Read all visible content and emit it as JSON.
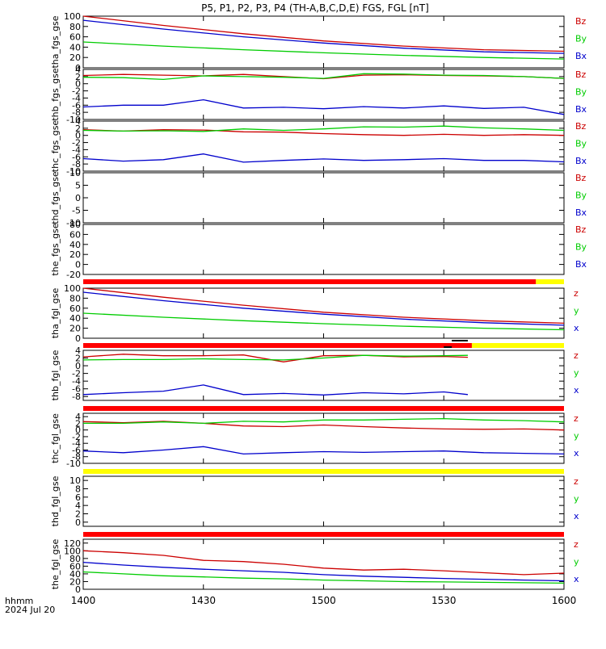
{
  "title": "P5, P1, P2, P3, P4 (TH-A,B,C,D,E) FGS, FGL [nT]",
  "footer": {
    "line1": "hhmm",
    "line2": "2024 Jul 20"
  },
  "colors": {
    "x": "#0000cc",
    "y": "#00cc00",
    "z": "#cc0000",
    "bar_red": "#ff0000",
    "bar_yellow": "#ffff00",
    "bar_black": "#000000"
  },
  "chart_data": [
    {
      "type": "line",
      "panel": "tha_fgs_gse",
      "ylabel": "tha_fgs_gse",
      "ylim": [
        0,
        100
      ],
      "yticks": [
        "100",
        "80",
        "60",
        "40",
        "20",
        "0"
      ],
      "legend": [
        "Bz",
        "By",
        "Bx"
      ],
      "series": [
        {
          "name": "Bz",
          "color_key": "z",
          "x": [
            0,
            20,
            40,
            60,
            80,
            100,
            120
          ],
          "values": [
            100,
            82,
            66,
            52,
            42,
            35,
            32
          ]
        },
        {
          "name": "By",
          "color_key": "y",
          "x": [
            0,
            20,
            40,
            60,
            80,
            100,
            120
          ],
          "values": [
            50,
            42,
            35,
            29,
            24,
            20,
            17
          ]
        },
        {
          "name": "Bx",
          "color_key": "x",
          "x": [
            0,
            20,
            40,
            60,
            80,
            100,
            120
          ],
          "values": [
            92,
            75,
            60,
            48,
            38,
            31,
            28
          ]
        }
      ]
    },
    {
      "type": "line",
      "panel": "thb_fgs_gse",
      "ylabel": "thb_fgs_gse",
      "ylim": [
        -10,
        4
      ],
      "yticks": [
        "4",
        "2",
        "0",
        "-2",
        "-4",
        "-6",
        "-8",
        "-10"
      ],
      "legend": [
        "Bz",
        "By",
        "Bx"
      ],
      "series": [
        {
          "name": "Bz",
          "color_key": "z",
          "x": [
            0,
            10,
            20,
            30,
            40,
            50,
            60,
            70,
            80,
            90,
            100,
            110,
            120
          ],
          "values": [
            2.3,
            2.6,
            2.4,
            2.2,
            2.6,
            2.0,
            1.4,
            2.4,
            2.5,
            2.3,
            2.2,
            2.0,
            1.5
          ]
        },
        {
          "name": "By",
          "color_key": "y",
          "x": [
            0,
            10,
            20,
            30,
            40,
            50,
            60,
            70,
            80,
            90,
            100,
            110,
            120
          ],
          "values": [
            1.8,
            1.7,
            1.2,
            2.2,
            2.0,
            1.8,
            1.5,
            2.8,
            2.7,
            2.4,
            2.3,
            2.0,
            1.5
          ]
        },
        {
          "name": "Bx",
          "color_key": "x",
          "x": [
            0,
            10,
            20,
            30,
            40,
            50,
            60,
            70,
            80,
            90,
            100,
            110,
            120
          ],
          "values": [
            -6.5,
            -6.0,
            -6.0,
            -4.5,
            -6.8,
            -6.6,
            -7.0,
            -6.4,
            -6.8,
            -6.2,
            -6.9,
            -6.6,
            -8.6
          ]
        }
      ]
    },
    {
      "type": "line",
      "panel": "thc_fgs_gse",
      "ylabel": "thc_fgs_gse",
      "ylim": [
        -10,
        4
      ],
      "yticks": [
        "4",
        "2",
        "0",
        "-2",
        "-4",
        "-6",
        "-8",
        "-10"
      ],
      "legend": [
        "Bz",
        "By",
        "Bx"
      ],
      "series": [
        {
          "name": "Bz",
          "color_key": "z",
          "x": [
            0,
            10,
            20,
            30,
            40,
            50,
            60,
            70,
            80,
            90,
            100,
            110,
            120
          ],
          "values": [
            1.6,
            1.2,
            1.6,
            1.5,
            1.0,
            0.9,
            0.5,
            0.2,
            0.0,
            0.3,
            0.0,
            0.2,
            0.0
          ]
        },
        {
          "name": "By",
          "color_key": "y",
          "x": [
            0,
            10,
            20,
            30,
            40,
            50,
            60,
            70,
            80,
            90,
            100,
            110,
            120
          ],
          "values": [
            1.4,
            1.2,
            1.3,
            1.1,
            1.8,
            1.4,
            1.8,
            2.4,
            2.3,
            2.6,
            2.1,
            1.8,
            1.4
          ]
        },
        {
          "name": "Bx",
          "color_key": "x",
          "x": [
            0,
            10,
            20,
            30,
            40,
            50,
            60,
            70,
            80,
            90,
            100,
            110,
            120
          ],
          "values": [
            -6.5,
            -7.2,
            -6.8,
            -5.2,
            -7.5,
            -7.0,
            -6.6,
            -7.0,
            -6.8,
            -6.5,
            -7.0,
            -7.0,
            -7.4
          ]
        }
      ]
    },
    {
      "type": "line",
      "panel": "thd_fgs_gse",
      "ylabel": "thd_fgs_gse",
      "ylim": [
        -10,
        10
      ],
      "yticks": [
        "10",
        "5",
        "0",
        "-5",
        "-10"
      ],
      "legend": [
        "Bz",
        "By",
        "Bx"
      ],
      "series": []
    },
    {
      "type": "line",
      "panel": "the_fgs_gse",
      "ylabel": "the_fgs_gse",
      "ylim": [
        -20,
        80
      ],
      "yticks": [
        "80",
        "60",
        "40",
        "20",
        "0",
        "-20"
      ],
      "legend": [
        "Bz",
        "By",
        "Bx"
      ],
      "series": []
    },
    {
      "type": "line",
      "panel": "tha_fgl_gse",
      "ylabel": "tha_fgl_gse",
      "ylim": [
        0,
        100
      ],
      "yticks": [
        "100",
        "80",
        "60",
        "40",
        "20",
        "0"
      ],
      "legend": [
        "z",
        "y",
        "x"
      ],
      "series": [
        {
          "name": "z",
          "color_key": "z",
          "x": [
            0,
            20,
            40,
            60,
            80,
            100,
            120
          ],
          "values": [
            100,
            82,
            66,
            52,
            42,
            35,
            30
          ]
        },
        {
          "name": "y",
          "color_key": "y",
          "x": [
            0,
            20,
            40,
            60,
            80,
            100,
            120
          ],
          "values": [
            50,
            42,
            35,
            29,
            24,
            20,
            17
          ]
        },
        {
          "name": "x",
          "color_key": "x",
          "x": [
            0,
            20,
            40,
            60,
            80,
            100,
            120
          ],
          "values": [
            92,
            75,
            60,
            48,
            38,
            31,
            26
          ]
        }
      ]
    },
    {
      "type": "line",
      "panel": "thb_fgl_gse",
      "ylabel": "thb_fgl_gse",
      "ylim": [
        -9,
        4
      ],
      "yticks": [
        "4",
        "2",
        "0",
        "-2",
        "-4",
        "-6",
        "-8"
      ],
      "legend": [
        "z",
        "y",
        "x"
      ],
      "series": [
        {
          "name": "z",
          "color_key": "z",
          "x": [
            0,
            10,
            20,
            30,
            40,
            50,
            60,
            70,
            80,
            90,
            96
          ],
          "values": [
            2.3,
            3.0,
            2.6,
            2.6,
            2.8,
            1.0,
            2.6,
            2.7,
            2.3,
            2.4,
            2.2
          ]
        },
        {
          "name": "y",
          "color_key": "y",
          "x": [
            0,
            10,
            20,
            30,
            40,
            50,
            60,
            70,
            80,
            90,
            96
          ],
          "values": [
            1.5,
            1.6,
            1.6,
            1.8,
            1.6,
            1.5,
            2.0,
            2.7,
            2.5,
            2.6,
            2.7
          ]
        },
        {
          "name": "x",
          "color_key": "x",
          "x": [
            0,
            10,
            20,
            30,
            40,
            50,
            60,
            70,
            80,
            90,
            96
          ],
          "values": [
            -7.5,
            -7.0,
            -6.6,
            -5.0,
            -7.5,
            -7.2,
            -7.6,
            -7.0,
            -7.3,
            -6.8,
            -7.5
          ]
        }
      ]
    },
    {
      "type": "line",
      "panel": "thc_fgl_gse",
      "ylabel": "thc_fgl_gse",
      "ylim": [
        -10,
        5
      ],
      "yticks": [
        "4",
        "2",
        "0",
        "-2",
        "-4",
        "-6",
        "-8",
        "-10"
      ],
      "legend": [
        "z",
        "y",
        "x"
      ],
      "series": [
        {
          "name": "z",
          "color_key": "z",
          "x": [
            0,
            10,
            20,
            30,
            40,
            50,
            60,
            70,
            80,
            90,
            100,
            110,
            120
          ],
          "values": [
            2.5,
            2.2,
            2.6,
            2.0,
            1.2,
            1.0,
            1.5,
            1.0,
            0.6,
            0.3,
            0.2,
            0.3,
            0.0
          ]
        },
        {
          "name": "y",
          "color_key": "y",
          "x": [
            0,
            10,
            20,
            30,
            40,
            50,
            60,
            70,
            80,
            90,
            100,
            110,
            120
          ],
          "values": [
            2.0,
            2.0,
            2.4,
            2.0,
            2.6,
            2.4,
            3.0,
            3.0,
            3.2,
            3.4,
            3.0,
            2.8,
            2.4
          ]
        },
        {
          "name": "x",
          "color_key": "x",
          "x": [
            0,
            10,
            20,
            30,
            40,
            50,
            60,
            70,
            80,
            90,
            100,
            110,
            120
          ],
          "values": [
            -6.3,
            -6.8,
            -6.0,
            -5.0,
            -7.2,
            -6.8,
            -6.5,
            -6.7,
            -6.5,
            -6.3,
            -6.8,
            -7.0,
            -7.2
          ]
        }
      ]
    },
    {
      "type": "line",
      "panel": "thd_fgl_gse",
      "ylabel": "thd_fgl_gse",
      "ylim": [
        -1,
        11
      ],
      "yticks": [
        "10",
        "8",
        "6",
        "4",
        "2",
        "0"
      ],
      "legend": [
        "z",
        "y",
        "x"
      ],
      "series": []
    },
    {
      "type": "line",
      "panel": "the_fgl_gse",
      "ylabel": "the_fgl_gse",
      "ylim": [
        0,
        130
      ],
      "yticks": [
        "120",
        "100",
        "80",
        "60",
        "40",
        "20",
        "0"
      ],
      "legend": [
        "z",
        "y",
        "x"
      ],
      "series": [
        {
          "name": "z",
          "color_key": "z",
          "x": [
            0,
            10,
            20,
            30,
            40,
            50,
            60,
            70,
            80,
            90,
            100,
            110,
            120
          ],
          "values": [
            100,
            95,
            88,
            75,
            72,
            65,
            55,
            50,
            52,
            48,
            43,
            38,
            42
          ]
        },
        {
          "name": "y",
          "color_key": "y",
          "x": [
            0,
            10,
            20,
            30,
            40,
            50,
            60,
            70,
            80,
            90,
            100,
            110,
            120
          ],
          "values": [
            45,
            40,
            35,
            32,
            29,
            27,
            24,
            22,
            20,
            19,
            18,
            17,
            16
          ]
        },
        {
          "name": "x",
          "color_key": "x",
          "x": [
            0,
            10,
            20,
            30,
            40,
            50,
            60,
            70,
            80,
            90,
            100,
            110,
            120
          ],
          "values": [
            70,
            63,
            57,
            52,
            48,
            44,
            38,
            34,
            31,
            28,
            26,
            24,
            22
          ]
        }
      ]
    }
  ],
  "xaxis": {
    "ticks": [
      "1400",
      "1430",
      "1500",
      "1530",
      "1600"
    ],
    "tick_minutes": [
      0,
      30,
      60,
      90,
      120
    ],
    "range_minutes": [
      0,
      120
    ]
  },
  "bars": [
    {
      "segments": [
        {
          "color": "bar_red",
          "from": 0,
          "to": 113
        },
        {
          "color": "bar_yellow",
          "from": 113,
          "to": 120
        }
      ]
    },
    {
      "segments": [
        {
          "color": "bar_red",
          "from": 0,
          "to": 97
        },
        {
          "color": "bar_yellow",
          "from": 97,
          "to": 120
        }
      ],
      "marks": [
        {
          "color": "bar_black",
          "from": 92,
          "to": 96
        },
        {
          "color": "bar_black",
          "from": 90,
          "to": 92
        }
      ]
    },
    {
      "segments": [
        {
          "color": "bar_red",
          "from": 0,
          "to": 120
        }
      ]
    },
    {
      "segments": [
        {
          "color": "bar_yellow",
          "from": 0,
          "to": 120
        }
      ]
    },
    {
      "segments": [
        {
          "color": "bar_red",
          "from": 0,
          "to": 120
        }
      ]
    }
  ]
}
